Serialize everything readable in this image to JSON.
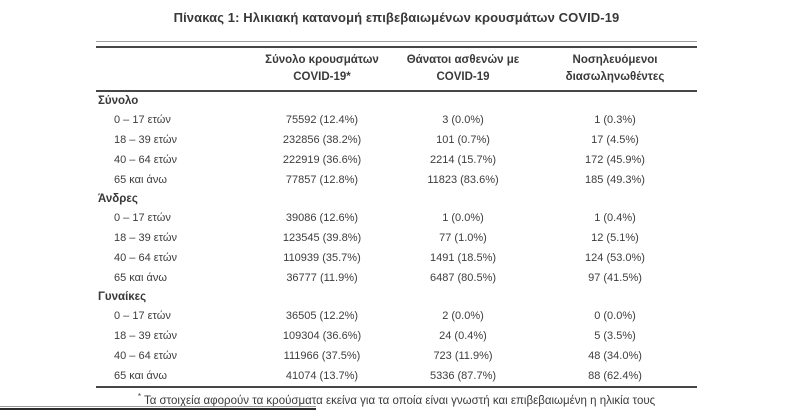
{
  "title": "Πίνακας 1: Ηλικιακή κατανομή επιβεβαιωμένων κρουσμάτων COVID-19",
  "table": {
    "headers": [
      {
        "line1": "Σύνολο κρουσμάτων",
        "line2": "COVID-19*"
      },
      {
        "line1": "Θάνατοι ασθενών με",
        "line2": "COVID-19"
      },
      {
        "line1": "Νοσηλευόμενοι",
        "line2": "διασωληνωθέντες"
      }
    ],
    "sections": [
      {
        "label": "Σύνολο",
        "rows": [
          {
            "age": "0 – 17 ετών",
            "cases": "75592 (12.4%)",
            "deaths": "3 (0.0%)",
            "intubated": "1 (0.3%)"
          },
          {
            "age": "18 – 39 ετών",
            "cases": "232856 (38.2%)",
            "deaths": "101 (0.7%)",
            "intubated": "17 (4.5%)"
          },
          {
            "age": "40 – 64 ετών",
            "cases": "222919 (36.6%)",
            "deaths": "2214 (15.7%)",
            "intubated": "172 (45.9%)"
          },
          {
            "age": "65 και άνω",
            "cases": "77857 (12.8%)",
            "deaths": "11823 (83.6%)",
            "intubated": "185 (49.3%)"
          }
        ]
      },
      {
        "label": "Άνδρες",
        "rows": [
          {
            "age": "0 – 17 ετών",
            "cases": "39086 (12.6%)",
            "deaths": "1 (0.0%)",
            "intubated": "1 (0.4%)"
          },
          {
            "age": "18 – 39 ετών",
            "cases": "123545 (39.8%)",
            "deaths": "77 (1.0%)",
            "intubated": "12 (5.1%)"
          },
          {
            "age": "40 – 64 ετών",
            "cases": "110939 (35.7%)",
            "deaths": "1491 (18.5%)",
            "intubated": "124 (53.0%)"
          },
          {
            "age": "65 και άνω",
            "cases": "36777 (11.9%)",
            "deaths": "6487 (80.5%)",
            "intubated": "97 (41.5%)"
          }
        ]
      },
      {
        "label": "Γυναίκες",
        "rows": [
          {
            "age": "0 – 17 ετών",
            "cases": "36505 (12.2%)",
            "deaths": "2 (0.0%)",
            "intubated": "0 (0.0%)"
          },
          {
            "age": "18 – 39 ετών",
            "cases": "109304 (36.6%)",
            "deaths": "24 (0.4%)",
            "intubated": "5 (3.5%)"
          },
          {
            "age": "40 – 64 ετών",
            "cases": "111966 (37.5%)",
            "deaths": "723 (11.9%)",
            "intubated": "48 (34.0%)"
          },
          {
            "age": "65 και άνω",
            "cases": "41074 (13.7%)",
            "deaths": "5336 (87.7%)",
            "intubated": "88 (62.4%)"
          }
        ]
      }
    ],
    "footnote_marker": "*",
    "footnote": "Τα στοιχεία αφορούν τα κρούσματα εκείνα για τα οποία είναι γνωστή και επιβεβαιωμένη η ηλικία τους"
  },
  "colors": {
    "text": "#3b3b3b",
    "rule_dark": "#474747",
    "rule_thin": "#9e9e9e",
    "background": "#ffffff"
  }
}
